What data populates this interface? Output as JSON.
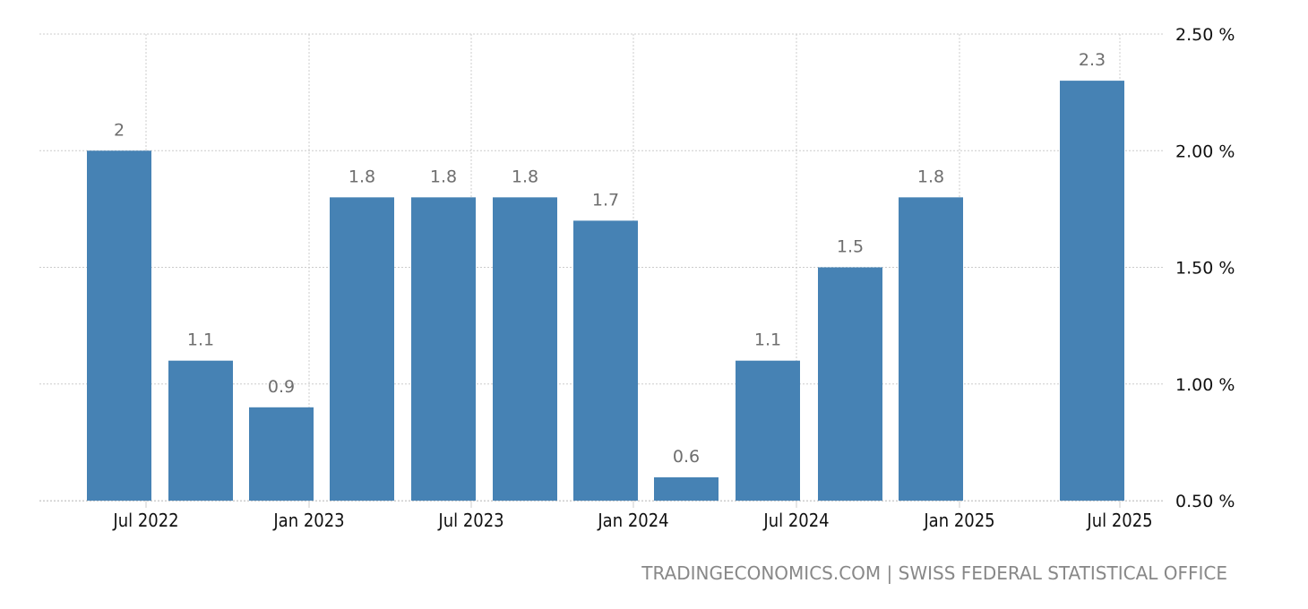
{
  "chart_data": {
    "type": "bar",
    "title": "",
    "xlabel": "",
    "ylabel": "",
    "ylim": [
      0.5,
      2.5
    ],
    "yticks": [
      "0.50 %",
      "1.00 %",
      "1.50 %",
      "2.00 %",
      "2.50 %"
    ],
    "ytick_values": [
      0.5,
      1.0,
      1.5,
      2.0,
      2.5
    ],
    "xtick_labels": [
      "Jul 2022",
      "Jan 2023",
      "Jul 2023",
      "Jan 2024",
      "Jul 2024",
      "Jan 2025",
      "Jul 2025"
    ],
    "grid": true,
    "legend": null,
    "categories": [
      "Jun 2022",
      "Sep 2022",
      "Dec 2022",
      "Mar 2023",
      "Jun 2023",
      "Sep 2023",
      "Dec 2023",
      "Mar 2024",
      "Jun 2024",
      "Sep 2024",
      "Dec 2024",
      "Mar 2025",
      "Jun 2025"
    ],
    "values": [
      2,
      1.1,
      0.9,
      1.8,
      1.8,
      1.8,
      1.7,
      0.6,
      1.1,
      1.5,
      1.8,
      null,
      2.3
    ],
    "data_labels": [
      "2",
      "1.1",
      "0.9",
      "1.8",
      "1.8",
      "1.8",
      "1.7",
      "0.6",
      "1.1",
      "1.5",
      "1.8",
      "",
      "2.3"
    ],
    "bar_color": "#4682b4",
    "y_axis_position": "right"
  },
  "source": {
    "text": "TRADINGECONOMICS.COM | SWISS FEDERAL STATISTICAL OFFICE"
  },
  "colors": {
    "bar": "#4682b4",
    "grid": "#cccccc",
    "label": "#6e6e6e",
    "axis_text": "#111111",
    "source_text": "#888888"
  }
}
